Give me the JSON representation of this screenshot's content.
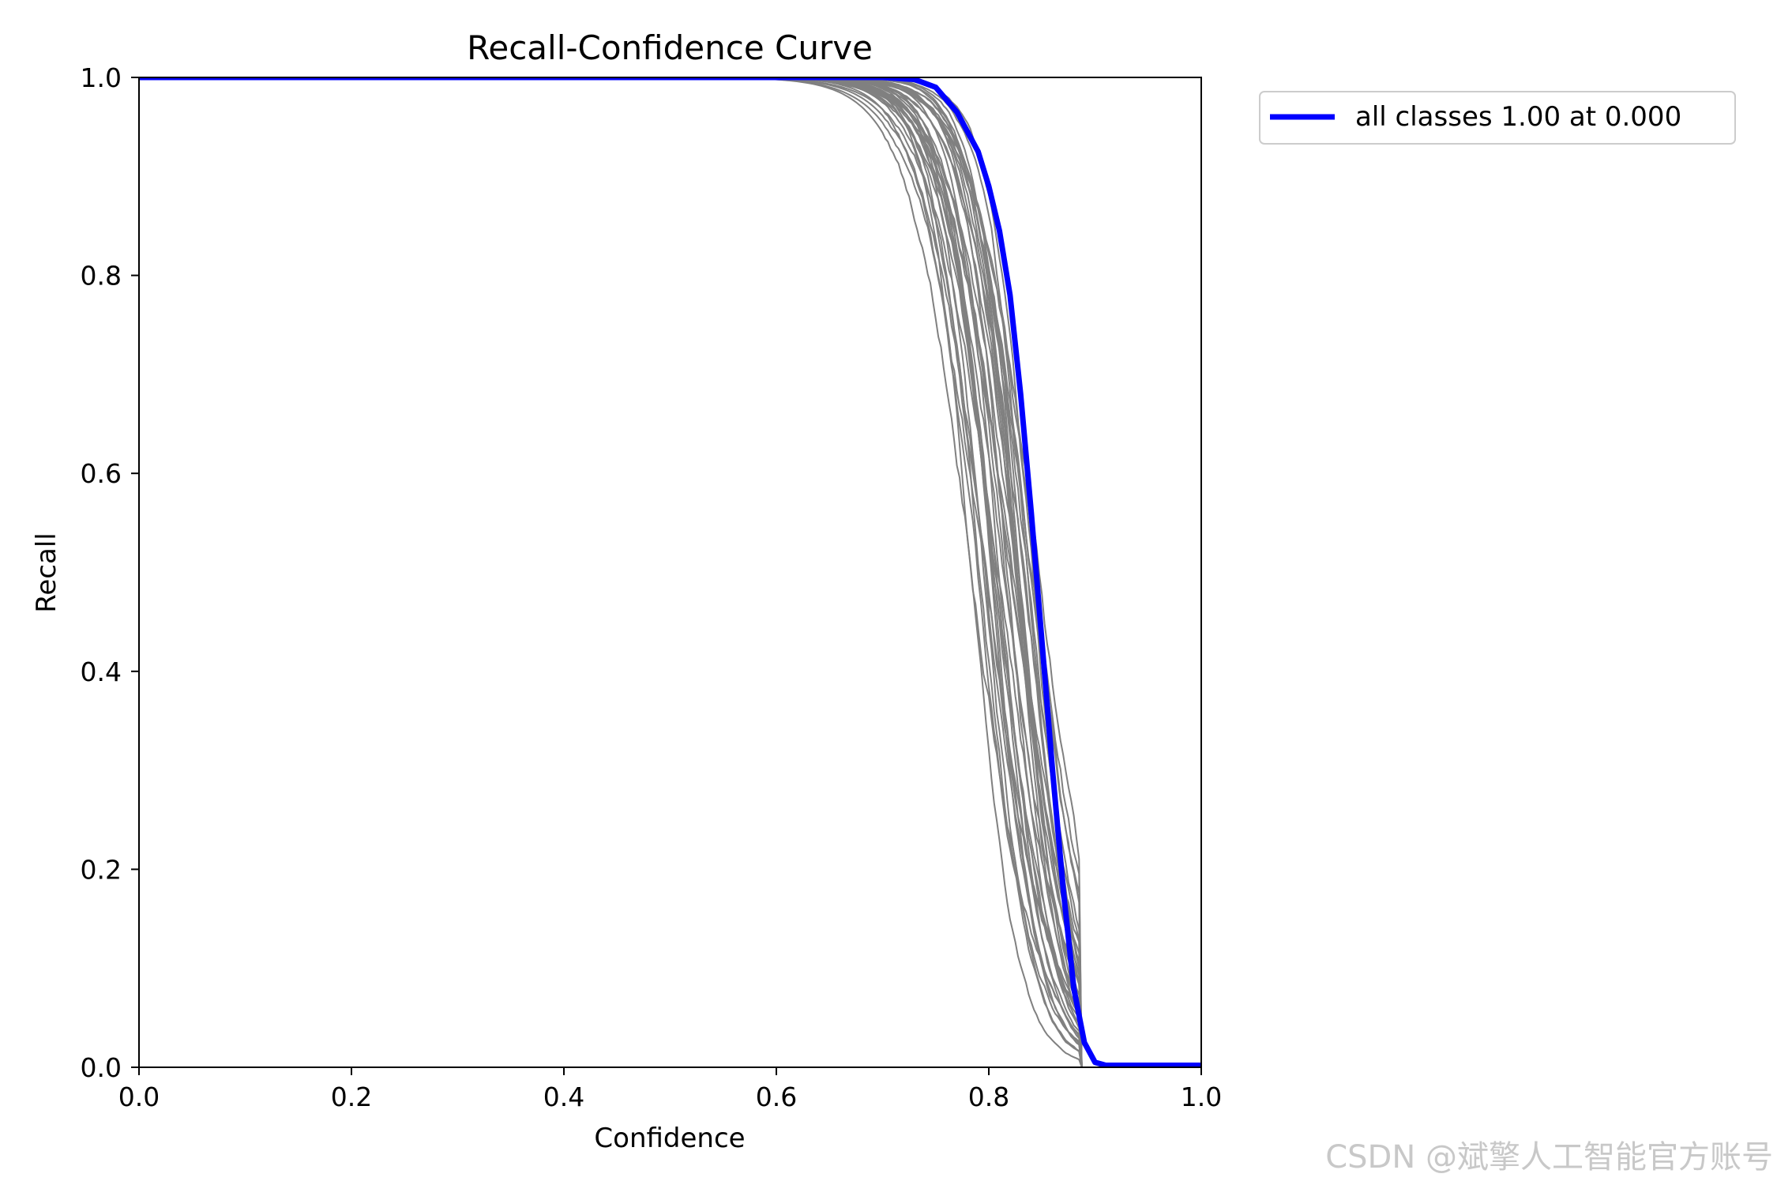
{
  "chart_data": {
    "type": "line",
    "title": "Recall-Confidence Curve",
    "xlabel": "Confidence",
    "ylabel": "Recall",
    "xlim": [
      0.0,
      1.0
    ],
    "ylim": [
      0.0,
      1.0
    ],
    "xticks": [
      "0.0",
      "0.2",
      "0.4",
      "0.6",
      "0.8",
      "1.0"
    ],
    "yticks": [
      "0.0",
      "0.2",
      "0.4",
      "0.6",
      "0.8",
      "1.0"
    ],
    "grid": false,
    "legend_position": "outside-top-right",
    "series": [
      {
        "name": "all classes 1.00 at 0.000",
        "color": "#0000ff",
        "x": [
          0.0,
          0.7,
          0.73,
          0.75,
          0.77,
          0.79,
          0.8,
          0.81,
          0.82,
          0.83,
          0.84,
          0.85,
          0.86,
          0.87,
          0.88,
          0.89,
          0.9,
          0.91,
          1.0
        ],
        "y": [
          1.0,
          1.0,
          0.998,
          0.99,
          0.965,
          0.925,
          0.89,
          0.845,
          0.78,
          0.68,
          0.56,
          0.43,
          0.3,
          0.18,
          0.08,
          0.025,
          0.005,
          0.002,
          0.002
        ]
      }
    ],
    "class_curves_color": "#808080",
    "class_curves_count": 38,
    "class_curves_confidence_range": [
      0.71,
      0.89
    ]
  },
  "watermark": "CSDN @斌擎人工智能官方账号"
}
